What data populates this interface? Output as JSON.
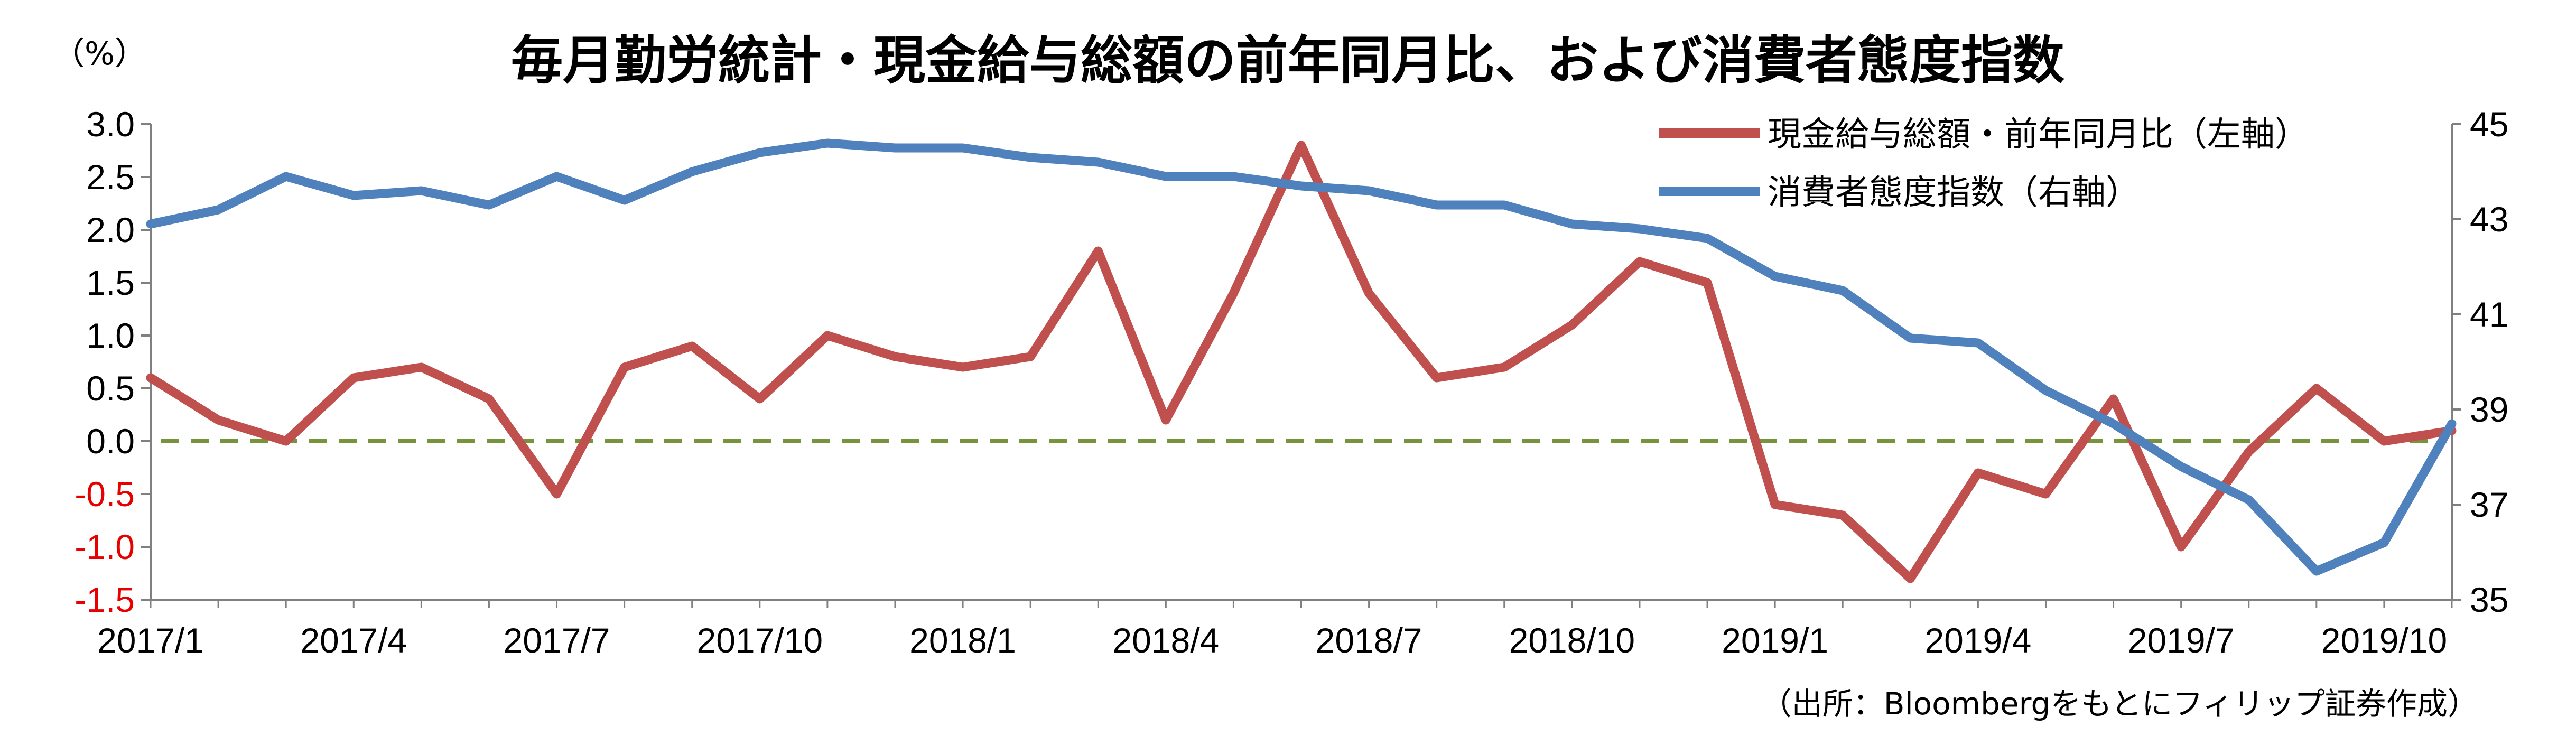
{
  "chart_data": {
    "type": "line",
    "title": "毎月勤労統計・現金給与総額の前年同月比、および消費者態度指数",
    "left_axis_unit": "（%）",
    "source_note": "（出所：Bloombergをもとにフィリップ証券作成）",
    "x_ticks": [
      "2017/1",
      "2017/4",
      "2017/7",
      "2017/10",
      "2018/1",
      "2018/4",
      "2018/7",
      "2018/10",
      "2019/1",
      "2019/4",
      "2019/7",
      "2019/10"
    ],
    "y_left": {
      "min": -1.5,
      "max": 3.0,
      "ticks": [
        "3.0",
        "2.5",
        "2.0",
        "1.5",
        "1.0",
        "0.5",
        "0.0",
        "-0.5",
        "-1.0",
        "-1.5"
      ]
    },
    "y_right": {
      "min": 35,
      "max": 45,
      "ticks": [
        "45",
        "43",
        "41",
        "39",
        "37",
        "35"
      ]
    },
    "reference_line": {
      "value": 0.0,
      "color": "#77933c"
    },
    "legend_position": "top-right",
    "series": [
      {
        "name": "現金給与総額・前年同月比（左軸）",
        "axis": "left",
        "color": "#c0504d",
        "values": [
          0.6,
          0.2,
          0.0,
          0.6,
          0.7,
          0.4,
          -0.5,
          0.7,
          0.9,
          0.4,
          1.0,
          0.8,
          0.7,
          0.8,
          1.8,
          0.2,
          1.4,
          2.8,
          1.4,
          0.6,
          0.7,
          1.1,
          1.7,
          1.5,
          -0.6,
          -0.7,
          -1.3,
          -0.3,
          -0.5,
          0.4,
          -1.0,
          -0.1,
          0.5,
          0.0,
          0.1
        ]
      },
      {
        "name": "消費者態度指数（右軸）",
        "axis": "right",
        "color": "#4f81bd",
        "values": [
          42.9,
          43.2,
          43.9,
          43.5,
          43.6,
          43.3,
          43.9,
          43.4,
          44.0,
          44.4,
          44.6,
          44.5,
          44.5,
          44.3,
          44.2,
          43.9,
          43.9,
          43.7,
          43.6,
          43.3,
          43.3,
          42.9,
          42.8,
          42.6,
          41.8,
          41.5,
          40.5,
          40.4,
          39.4,
          38.7,
          37.8,
          37.1,
          35.6,
          36.2,
          38.7
        ]
      }
    ]
  }
}
